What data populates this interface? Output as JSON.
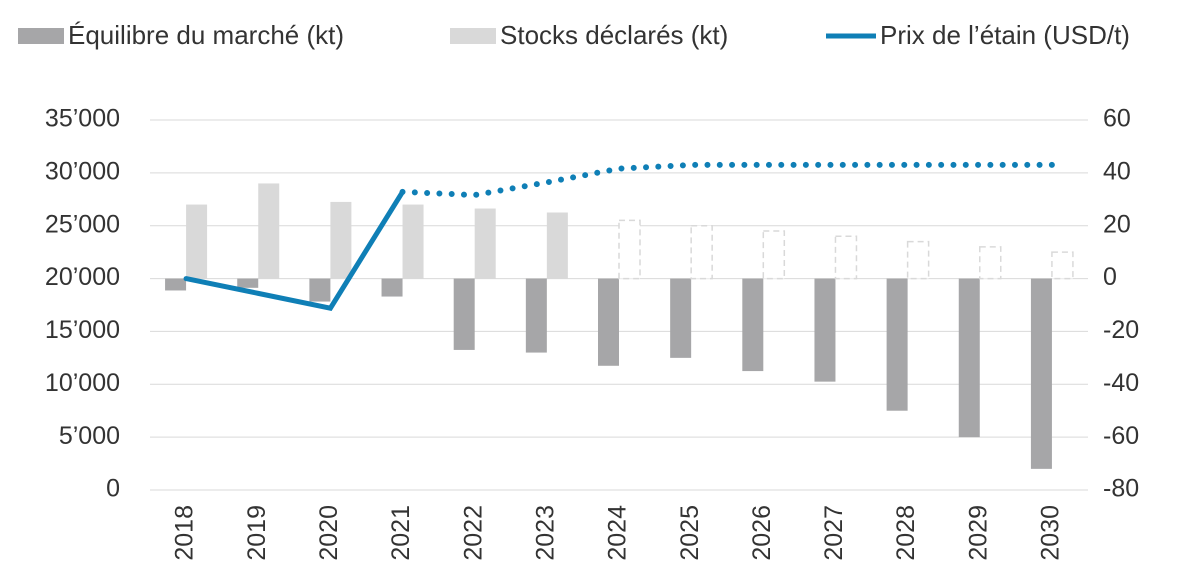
{
  "chart_data": {
    "type": "bar_line",
    "categories": [
      "2018",
      "2019",
      "2020",
      "2021",
      "2022",
      "2023",
      "2024",
      "2025",
      "2026",
      "2027",
      "2028",
      "2029",
      "2030"
    ],
    "series": [
      {
        "name": "Équilibre du marché (kt)",
        "type": "bar",
        "axis": "y2",
        "color": "#a6a6a8",
        "values": [
          -4.5,
          -3.5,
          -8.7,
          -6.8,
          -27,
          -28,
          -33,
          -30,
          -35,
          -39,
          -50,
          -60,
          -72
        ]
      },
      {
        "name": "Stocks déclarés (kt)",
        "type": "bar",
        "axis": "y2",
        "color": "#d9d9d9",
        "dashed_from": "2024",
        "values": [
          28,
          36,
          29,
          28,
          26.5,
          25,
          22,
          20,
          18,
          16,
          14,
          12,
          10
        ]
      },
      {
        "name": "Prix de l’étain (USD/t)",
        "type": "line",
        "axis": "y",
        "color": "#0f7fb6",
        "dotted_from": "2021",
        "values": [
          20000,
          18600,
          17200,
          28200,
          27900,
          29100,
          30400,
          30750,
          30750,
          30750,
          30750,
          30750,
          30750
        ]
      }
    ],
    "ylim": [
      0,
      35000
    ],
    "yticks": [
      {
        "value": 0,
        "label": "0"
      },
      {
        "value": 5000,
        "label": "5’000"
      },
      {
        "value": 10000,
        "label": "10’000"
      },
      {
        "value": 15000,
        "label": "15’000"
      },
      {
        "value": 20000,
        "label": "20’000"
      },
      {
        "value": 25000,
        "label": "25’000"
      },
      {
        "value": 30000,
        "label": "30’000"
      },
      {
        "value": 35000,
        "label": "35’000"
      }
    ],
    "y2lim": [
      -80,
      60
    ],
    "y2ticks": [
      -80,
      -60,
      -40,
      -20,
      0,
      20,
      40,
      60
    ],
    "grid": true,
    "legend": "top"
  }
}
